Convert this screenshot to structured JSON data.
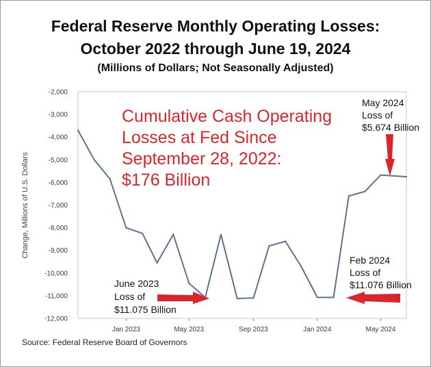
{
  "chart_data": {
    "type": "line",
    "title": "Federal Reserve Monthly Operating Losses:",
    "title_line2": "October 2022 through June 19, 2024",
    "subtitle": "(Millions of Dollars; Not Seasonally Adjusted)",
    "ylabel": "Change, Millions of U.S. Dollars",
    "xlabel": "",
    "ylim": [
      -12000,
      -2000
    ],
    "yticks": [
      -2000,
      -3000,
      -4000,
      -5000,
      -6000,
      -7000,
      -8000,
      -9000,
      -10000,
      -11000,
      -12000
    ],
    "ytick_labels": [
      "-2,000",
      "-3,000",
      "-4,000",
      "-5,000",
      "-6,000",
      "-7,000",
      "-8,000",
      "-9,000",
      "-10,000",
      "-11,000",
      "-12,000"
    ],
    "xlim": [
      "2022-10-01",
      "2024-06-19"
    ],
    "xticks": [
      "2023-01-01",
      "2023-05-01",
      "2023-09-01",
      "2024-01-01",
      "2024-05-01"
    ],
    "xtick_labels": [
      "Jan 2023",
      "May 2023",
      "Sep 2023",
      "Jan 2024",
      "May 2024"
    ],
    "grid": false,
    "line_color": "#5a7390",
    "series": [
      {
        "x": [
          "2022-10-01",
          "2022-11-01",
          "2022-12-01",
          "2023-01-01",
          "2023-02-01",
          "2023-03-01",
          "2023-04-01",
          "2023-05-01",
          "2023-06-01",
          "2023-07-01",
          "2023-08-01",
          "2023-09-01",
          "2023-10-01",
          "2023-11-01",
          "2023-12-01",
          "2024-01-01",
          "2024-02-01",
          "2024-03-01",
          "2024-04-01",
          "2024-05-01",
          "2024-06-19"
        ],
        "values": [
          -3700,
          -5000,
          -5850,
          -8000,
          -8250,
          -9550,
          -8300,
          -10450,
          -11075,
          -8300,
          -11125,
          -11100,
          -8800,
          -8600,
          -9700,
          -11075,
          -11076,
          -6600,
          -6400,
          -5674,
          -5750
        ]
      }
    ],
    "annotations": {
      "cumulative": [
        "Cumulative Cash Operating",
        "Losses at Fed Since",
        "September 28, 2022:",
        "$176 Billion"
      ],
      "may2024": [
        "May 2024",
        "Loss of",
        "$5.674 Billion"
      ],
      "feb2024": [
        "Feb 2024",
        "Loss of",
        "$11.076 Billion"
      ],
      "june2023": [
        "June 2023",
        "Loss of",
        "$11.075 Billion"
      ]
    },
    "arrow_color": "#d9252c",
    "cumulative_color": "#d9252c"
  },
  "source": "Source: Federal Reserve Board of Governors"
}
